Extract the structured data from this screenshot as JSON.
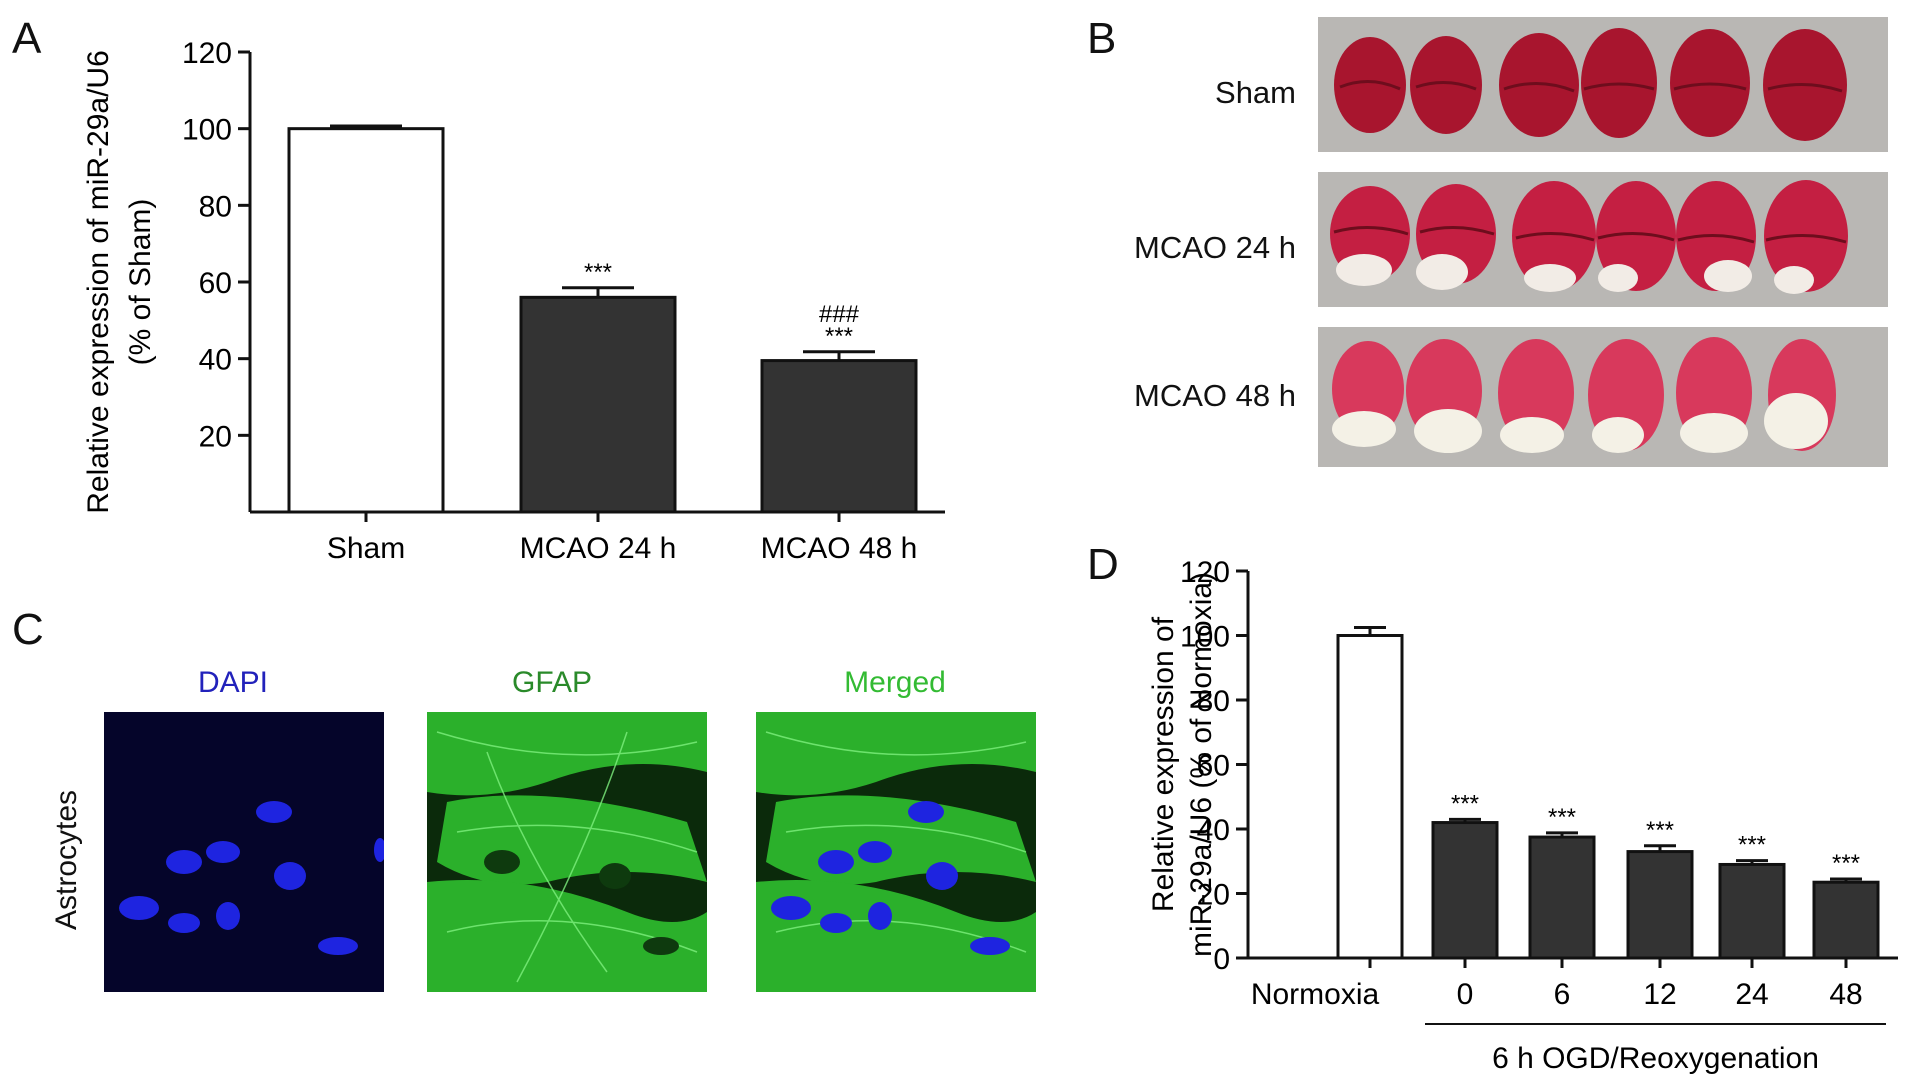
{
  "panels": {
    "a": "A",
    "b": "B",
    "c": "C",
    "d": "D"
  },
  "chart_data": [
    {
      "panel": "A",
      "type": "bar",
      "categories": [
        "Sham",
        "MCAO 24 h",
        "MCAO 48 h"
      ],
      "values": [
        100,
        56,
        39.5
      ],
      "errors": [
        0.7,
        2.5,
        2.3
      ],
      "bar_colors": [
        "#ffffff",
        "#333333",
        "#333333"
      ],
      "annotations": [
        {
          "category": "MCAO 24 h",
          "lines": [
            "***"
          ]
        },
        {
          "category": "MCAO 48 h",
          "lines": [
            "###",
            "***"
          ]
        }
      ],
      "ylabel_line1": "Relative expression of miR-29a/U6",
      "ylabel_line2": "(% of Sham)",
      "xlabel": "",
      "ylim": [
        0,
        120
      ],
      "yticks": [
        20,
        40,
        60,
        80,
        100,
        120
      ]
    },
    {
      "panel": "D",
      "type": "bar",
      "categories": [
        "Normoxia",
        "0",
        "6",
        "12",
        "24",
        "48"
      ],
      "values": [
        100,
        42,
        37.5,
        33,
        29,
        23.5
      ],
      "errors": [
        2.5,
        1.0,
        1.3,
        1.8,
        1.2,
        1.0
      ],
      "bar_colors": [
        "#ffffff",
        "#333333",
        "#333333",
        "#333333",
        "#333333",
        "#333333"
      ],
      "annotations": [
        {
          "category": "0",
          "lines": [
            "***"
          ]
        },
        {
          "category": "6",
          "lines": [
            "***"
          ]
        },
        {
          "category": "12",
          "lines": [
            "***"
          ]
        },
        {
          "category": "24",
          "lines": [
            "***"
          ]
        },
        {
          "category": "48",
          "lines": [
            "***"
          ]
        }
      ],
      "ylabel_line1": "Relative expression of",
      "ylabel_line2": "miR-29a/U6 (% of Normoxia)",
      "group_label": "6 h OGD/Reoxygenation",
      "ylim": [
        0,
        120
      ],
      "yticks": [
        0,
        20,
        40,
        60,
        80,
        100,
        120
      ]
    }
  ],
  "panel_b": {
    "rows": [
      "Sham",
      "MCAO 24 h",
      "MCAO 48 h"
    ]
  },
  "panel_c": {
    "row_label": "Astrocytes",
    "columns": [
      {
        "label": "DAPI",
        "color": "#2222bb"
      },
      {
        "label": "GFAP",
        "color": "#2a8a2a"
      },
      {
        "label": "Merged",
        "color": "#33bb33"
      }
    ]
  }
}
